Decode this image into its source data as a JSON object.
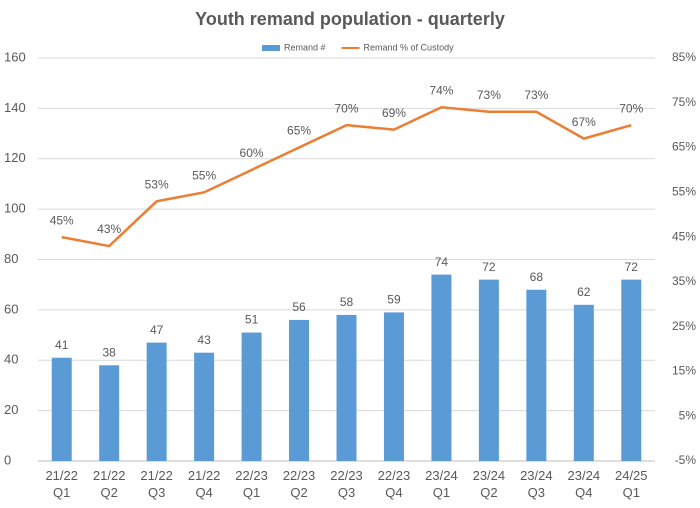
{
  "chart_data": {
    "type": "bar",
    "title": "Youth remand population - quarterly",
    "categories": [
      "21/22\nQ1",
      "21/22\nQ2",
      "21/22\nQ3",
      "21/22\nQ4",
      "22/23\nQ1",
      "22/23\nQ2",
      "22/23\nQ3",
      "22/23\nQ4",
      "23/24\nQ1",
      "23/24\nQ2",
      "23/24\nQ3",
      "23/24\nQ4",
      "24/25\nQ1"
    ],
    "series": [
      {
        "name": "Remand #",
        "type": "bar",
        "color": "#5b9bd5",
        "values": [
          41,
          38,
          47,
          43,
          51,
          56,
          58,
          59,
          74,
          72,
          68,
          62,
          72
        ]
      },
      {
        "name": "Remand % of Custody",
        "type": "line",
        "axis": "y2",
        "color": "#ed7d31",
        "values": [
          45,
          43,
          53,
          55,
          60,
          65,
          70,
          69,
          74,
          73,
          73,
          67,
          70
        ],
        "value_labels": [
          "45%",
          "43%",
          "53%",
          "55%",
          "60%",
          "65%",
          "70%",
          "69%",
          "74%",
          "73%",
          "73%",
          "67%",
          "70%"
        ]
      }
    ],
    "ylim": [
      0,
      160
    ],
    "yticks": [
      0,
      20,
      40,
      60,
      80,
      100,
      120,
      140,
      160
    ],
    "y2lim": [
      -5,
      85
    ],
    "y2ticks": [
      {
        "value": -5,
        "label": "-5%"
      },
      {
        "value": 5,
        "label": "5%"
      },
      {
        "value": 15,
        "label": "15%"
      },
      {
        "value": 25,
        "label": "25%"
      },
      {
        "value": 35,
        "label": "35%"
      },
      {
        "value": 45,
        "label": "45%"
      },
      {
        "value": 55,
        "label": "55%"
      },
      {
        "value": 65,
        "label": "65%"
      },
      {
        "value": 75,
        "label": "75%"
      },
      {
        "value": 85,
        "label": "85%"
      }
    ],
    "grid": true,
    "legend": "top"
  }
}
